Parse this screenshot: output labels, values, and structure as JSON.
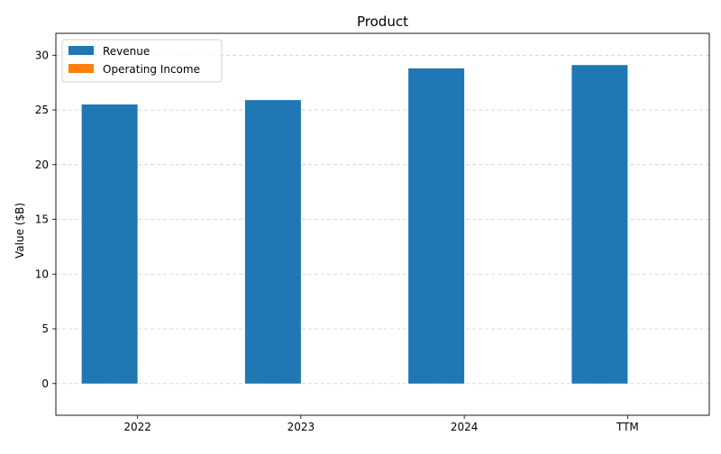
{
  "chart_data": {
    "type": "bar",
    "title": "Product",
    "xlabel": "",
    "ylabel": "Value ($B)",
    "categories": [
      "2022",
      "2023",
      "2024",
      "TTM"
    ],
    "series": [
      {
        "name": "Revenue",
        "color": "#1f77b4",
        "values": [
          25.5,
          25.9,
          28.8,
          29.1
        ]
      },
      {
        "name": "Operating Income",
        "color": "#ff7f0e",
        "values": [
          0,
          0,
          0,
          0
        ]
      }
    ],
    "ylim": [
      -2.9,
      32
    ],
    "yticks": [
      0,
      5,
      10,
      15,
      20,
      25,
      30
    ],
    "grid": true,
    "legend_position": "top-left"
  }
}
